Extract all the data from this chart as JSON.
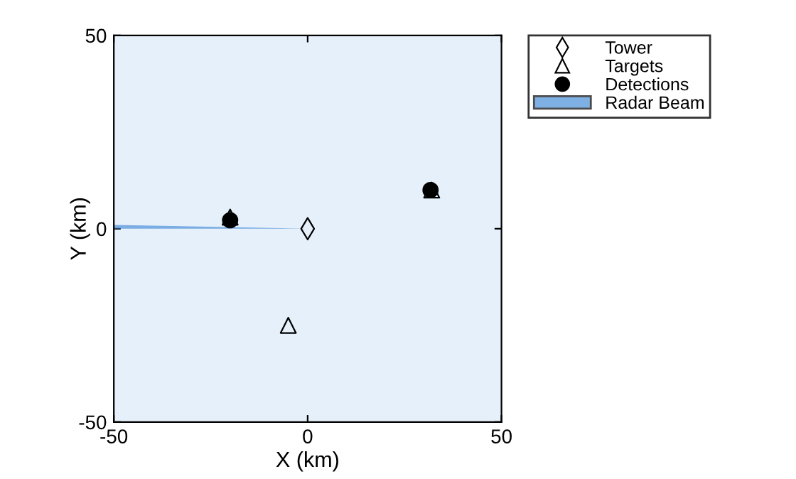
{
  "chart_data": {
    "type": "scatter",
    "xlabel": "X (km)",
    "ylabel": "Y (km)",
    "xlim": [
      -50,
      50
    ],
    "ylim": [
      -50,
      50
    ],
    "xticks": [
      -50,
      0,
      50
    ],
    "yticks": [
      -50,
      0,
      50
    ],
    "grid": false,
    "legend": "top right",
    "series": [
      {
        "name": "Tower",
        "marker": "diamond",
        "color": "#000000",
        "x": [
          0
        ],
        "values": [
          0
        ]
      },
      {
        "name": "Targets",
        "marker": "triangle",
        "color": "#000000",
        "x": [
          -20,
          -5,
          32
        ],
        "values": [
          3,
          -25,
          10
        ]
      },
      {
        "name": "Detections",
        "marker": "circle",
        "color": "#000000",
        "x": [
          -20,
          31.7
        ],
        "values": [
          2.2,
          10
        ]
      },
      {
        "name": "Radar Beam",
        "type": "area",
        "color": "#4a90d9",
        "x": [
          -50,
          0
        ],
        "values": [
          1,
          0
        ]
      }
    ]
  }
}
